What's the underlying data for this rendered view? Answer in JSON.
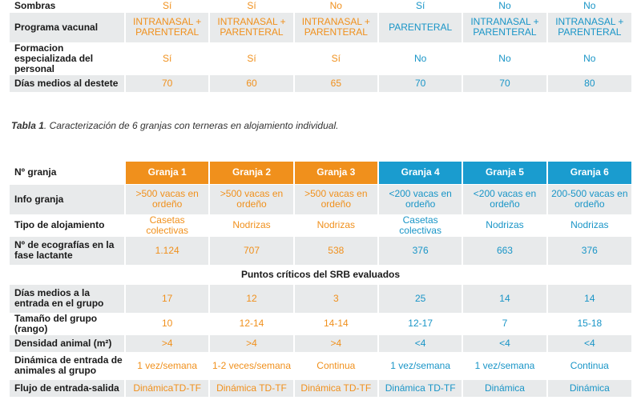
{
  "table_top": {
    "rows": [
      {
        "label": "Sombras",
        "values": [
          "Sí",
          "Sí",
          "No",
          "Sí",
          "No",
          "No"
        ]
      },
      {
        "label": "Programa vacunal",
        "values": [
          "INTRANASAL + PARENTERAL",
          "INTRANASAL + PARENTERAL",
          "INTRANASAL + PARENTERAL",
          "PARENTERAL",
          "INTRANASAL + PARENTERAL",
          "INTRANASAL + PARENTERAL"
        ]
      },
      {
        "label": "Formacion especializada del personal",
        "values": [
          "Sí",
          "Sí",
          "Sí",
          "No",
          "No",
          "No"
        ]
      },
      {
        "label": "Días medios al destete",
        "values": [
          "70",
          "60",
          "65",
          "70",
          "70",
          "80"
        ]
      }
    ]
  },
  "caption": {
    "bold": "Tabla 1",
    "text": ". Caracterización de 6 granjas con terneras en alojamiento individual."
  },
  "table_bottom": {
    "header_label": "Nº granja",
    "headers": [
      "Granja 1",
      "Granja 2",
      "Granja 3",
      "Granja 4",
      "Granja 5",
      "Granja 6"
    ],
    "rows_a": [
      {
        "label": "Info granja",
        "values": [
          ">500 vacas en ordeño",
          ">500 vacas en ordeño",
          ">500 vacas en ordeño",
          "<200 vacas en ordeño",
          "<200 vacas en ordeño",
          "200-500 vacas en ordeño"
        ]
      },
      {
        "label": "Tipo de alojamiento",
        "values": [
          "Casetas colectivas",
          "Nodrizas",
          "Nodrizas",
          "Casetas colectivas",
          "Nodrizas",
          "Nodrizas"
        ]
      },
      {
        "label": "Nº de ecografías en la fase lactante",
        "values": [
          "1.124",
          "707",
          "538",
          "376",
          "663",
          "376"
        ]
      }
    ],
    "section_title": "Puntos críticos del SRB evaluados",
    "rows_b": [
      {
        "label": "Días medios a la entrada en el grupo",
        "values": [
          "17",
          "12",
          "3",
          "25",
          "14",
          "14"
        ]
      },
      {
        "label": "Tamaño del grupo (rango)",
        "values": [
          "10",
          "12-14",
          "14-14",
          "12-17",
          "7",
          "15-18"
        ]
      },
      {
        "label": "Densidad animal (m²)",
        "values": [
          ">4",
          ">4",
          ">4",
          "<4",
          "<4",
          "<4"
        ]
      },
      {
        "label": "Dinámica de entrada de animales al grupo",
        "values": [
          "1 vez/semana",
          "1-2 veces/semana",
          "Continua",
          "1 vez/semana",
          "1 vez/semana",
          "Continua"
        ]
      },
      {
        "label": "Flujo de entrada-salida",
        "values": [
          "DinámicaTD-TF",
          "Dinámica TD-TF",
          "Dinámica TD-TF",
          "Dinámica TD-TF",
          "Dinámica",
          "Dinámica"
        ]
      }
    ]
  },
  "colors": {
    "orange": "#f0901c",
    "blue": "#1a9ccf",
    "grey_row": "#e8eaeb"
  }
}
